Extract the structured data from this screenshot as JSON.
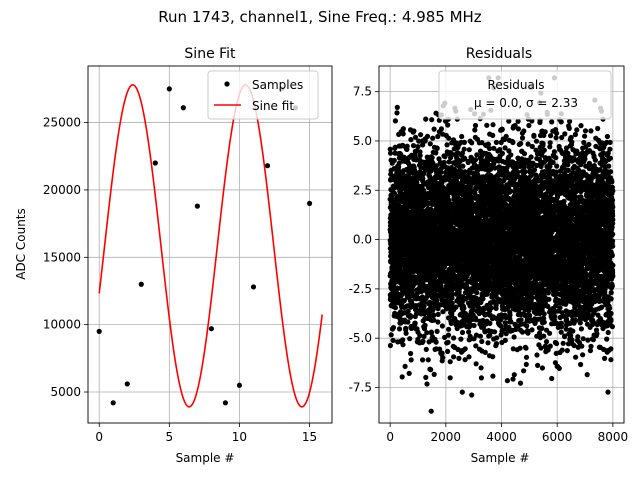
{
  "figure": {
    "suptitle": "Run 1743, channel1, Sine Freq.: 4.985 MHz"
  },
  "chart_data": [
    {
      "type": "scatter",
      "title": "Sine Fit",
      "xlabel": "Sample #",
      "ylabel": "ADC Counts",
      "xlim": [
        -0.8,
        16.6
      ],
      "ylim": [
        2700,
        29200
      ],
      "xticks": [
        0,
        5,
        10,
        15
      ],
      "yticks": [
        5000,
        10000,
        15000,
        20000,
        25000
      ],
      "grid": true,
      "legend_position": "top-right",
      "legend": [
        {
          "label": "Samples",
          "kind": "marker",
          "color": "#000000"
        },
        {
          "label": "Sine fit",
          "kind": "line",
          "color": "#ff0000"
        }
      ],
      "series": [
        {
          "name": "Samples",
          "kind": "points",
          "color": "#000000",
          "x": [
            0,
            1,
            2,
            3,
            4,
            5,
            6,
            7,
            8,
            9,
            10,
            11,
            12,
            13,
            14,
            15
          ],
          "y": [
            9500,
            4200,
            5600,
            13000,
            22000,
            27500,
            26100,
            18800,
            9700,
            4200,
            5500,
            12800,
            21800,
            27500,
            26100,
            19000
          ]
        },
        {
          "name": "Sine fit",
          "kind": "line",
          "color": "#ff0000",
          "model": {
            "offset": 15850,
            "amplitude": 11950,
            "period": 8.04,
            "phase": -0.3,
            "x_start": 0,
            "x_end": 15.9
          }
        }
      ]
    },
    {
      "type": "scatter",
      "title": "Residuals",
      "xlabel": "Sample #",
      "ylabel": "",
      "xlim": [
        -400,
        8400
      ],
      "ylim": [
        -9.3,
        8.8
      ],
      "xticks": [
        0,
        2000,
        4000,
        6000,
        8000
      ],
      "yticks": [
        -7.5,
        -5.0,
        -2.5,
        0.0,
        2.5,
        5.0,
        7.5
      ],
      "grid": true,
      "legend_position": "top-right",
      "legend_title": "Residuals",
      "legend_mu_label": "μ = 0.0, ",
      "legend_sigma_label": "σ = 2.33",
      "series": [
        {
          "name": "Residuals",
          "kind": "points",
          "color": "#000000",
          "count": 8000,
          "mean": 0.0,
          "std": 2.33,
          "x_range": [
            0,
            8000
          ]
        }
      ]
    }
  ]
}
